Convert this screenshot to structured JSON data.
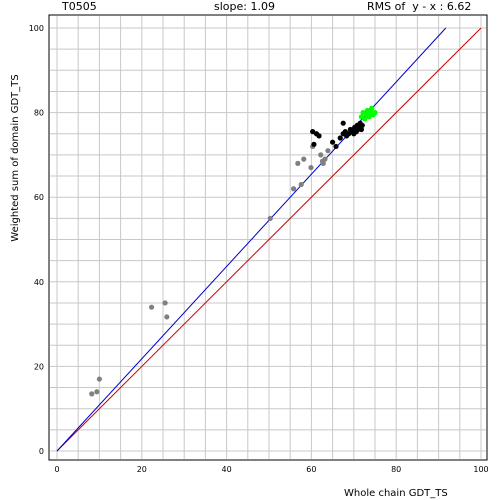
{
  "header": {
    "target": "T0505",
    "slope": "slope: 1.09",
    "rms": "RMS of  y - x : 6.62"
  },
  "chart_data": {
    "type": "scatter",
    "xlabel": "Whole chain GDT_TS",
    "ylabel": "Weighted sum of domain GDT_TS",
    "xlim": [
      0,
      100
    ],
    "ylim": [
      0,
      100
    ],
    "xticks": [
      0,
      20,
      40,
      60,
      80,
      100
    ],
    "yticks": [
      0,
      20,
      40,
      60,
      80,
      100
    ],
    "grid": true,
    "lines": [
      {
        "name": "y = x",
        "color": "#cc0000",
        "x": [
          0,
          100
        ],
        "y": [
          0,
          100
        ]
      },
      {
        "name": "fit",
        "color": "#0000cc",
        "x": [
          0,
          91.7
        ],
        "y": [
          0,
          100
        ]
      }
    ],
    "series": [
      {
        "color": "#808080",
        "points": [
          [
            8.2,
            13.5
          ],
          [
            9.4,
            14.0
          ],
          [
            10.0,
            17.0
          ],
          [
            22.3,
            34.0
          ],
          [
            25.5,
            35.0
          ],
          [
            25.9,
            31.7
          ],
          [
            50.3,
            55.0
          ],
          [
            55.8,
            62.0
          ],
          [
            56.8,
            68.0
          ],
          [
            57.6,
            63.0
          ],
          [
            58.2,
            69.0
          ],
          [
            59.9,
            67.0
          ],
          [
            60.3,
            72.0
          ],
          [
            62.2,
            70.0
          ],
          [
            62.6,
            68.5
          ],
          [
            62.8,
            68.0
          ],
          [
            63.2,
            69.0
          ],
          [
            63.9,
            71.0
          ]
        ]
      },
      {
        "color": "#000000",
        "points": [
          [
            60.3,
            75.5
          ],
          [
            60.6,
            72.5
          ],
          [
            61.2,
            75.0
          ],
          [
            61.8,
            74.5
          ],
          [
            65.0,
            73.0
          ],
          [
            65.8,
            72.0
          ],
          [
            66.8,
            74.0
          ],
          [
            67.5,
            77.5
          ],
          [
            67.5,
            75.0
          ],
          [
            68.0,
            75.5
          ],
          [
            68.3,
            74.5
          ],
          [
            68.8,
            75.0
          ],
          [
            69.2,
            76.0
          ],
          [
            69.6,
            75.5
          ],
          [
            70.0,
            75.0
          ],
          [
            70.2,
            76.5
          ],
          [
            70.6,
            75.5
          ],
          [
            70.8,
            77.0
          ],
          [
            71.0,
            76.0
          ],
          [
            71.3,
            76.5
          ],
          [
            71.5,
            77.5
          ],
          [
            71.8,
            76.0
          ],
          [
            72.0,
            77.0
          ]
        ]
      },
      {
        "color": "#00ff00",
        "points": [
          [
            71.8,
            79.0
          ],
          [
            72.2,
            80.0
          ],
          [
            72.6,
            78.5
          ],
          [
            73.0,
            79.5
          ],
          [
            73.2,
            80.5
          ],
          [
            73.6,
            79.0
          ],
          [
            74.0,
            80.0
          ],
          [
            74.2,
            81.0
          ],
          [
            74.6,
            79.5
          ],
          [
            75.0,
            80.0
          ]
        ]
      }
    ]
  }
}
